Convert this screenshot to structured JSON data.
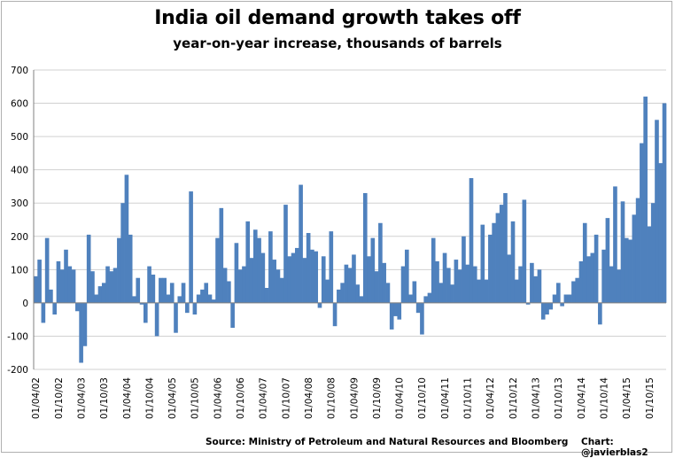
{
  "chart_data": {
    "type": "bar",
    "title": "India oil demand growth takes off",
    "subtitle": "year-on-year increase, thousands of barrels",
    "xlabel": "",
    "ylabel": "",
    "ylim": [
      -200,
      700
    ],
    "yticks": [
      -200,
      -100,
      0,
      100,
      200,
      300,
      400,
      500,
      600,
      700
    ],
    "grid": "horizontal",
    "bar_color": "#4f81bd",
    "source": "Source: Ministry of Petroleum and Natural Resources and Bloomberg",
    "credit": "Chart: @javierblas2",
    "xtick_labels": [
      "01/04/02",
      "01/10/02",
      "01/04/03",
      "01/10/03",
      "01/04/04",
      "01/10/04",
      "01/04/05",
      "01/10/05",
      "01/04/06",
      "01/10/06",
      "01/04/07",
      "01/10/07",
      "01/04/08",
      "01/10/08",
      "01/04/09",
      "01/10/09",
      "01/04/10",
      "01/10/10",
      "01/04/11",
      "01/10/11",
      "01/04/12",
      "01/10/12",
      "01/04/13",
      "01/10/13",
      "01/04/14",
      "01/10/14",
      "01/04/15",
      "01/10/15"
    ],
    "months_per_label": 6,
    "start_month": "2002-04",
    "values": [
      80,
      130,
      -60,
      195,
      40,
      -35,
      125,
      100,
      160,
      110,
      100,
      -25,
      -180,
      -130,
      205,
      95,
      25,
      50,
      60,
      110,
      95,
      105,
      195,
      300,
      385,
      205,
      20,
      75,
      -5,
      -60,
      110,
      85,
      -100,
      75,
      75,
      25,
      60,
      -90,
      20,
      60,
      -30,
      335,
      -35,
      25,
      40,
      60,
      25,
      10,
      195,
      285,
      105,
      65,
      -75,
      180,
      100,
      110,
      245,
      135,
      220,
      195,
      150,
      45,
      215,
      130,
      100,
      75,
      295,
      140,
      150,
      165,
      355,
      135,
      210,
      160,
      155,
      -15,
      140,
      70,
      215,
      -70,
      40,
      60,
      115,
      105,
      145,
      55,
      20,
      330,
      140,
      195,
      95,
      240,
      120,
      60,
      -80,
      -40,
      -50,
      110,
      160,
      25,
      65,
      -30,
      -95,
      20,
      30,
      195,
      125,
      60,
      150,
      105,
      55,
      130,
      100,
      200,
      115,
      375,
      110,
      70,
      235,
      70,
      205,
      240,
      270,
      295,
      330,
      145,
      245,
      70,
      110,
      310,
      -5,
      120,
      80,
      100,
      -50,
      -35,
      -20,
      25,
      60,
      -10,
      25,
      25,
      65,
      75,
      125,
      240,
      140,
      150,
      205,
      -65,
      160,
      255,
      110,
      350,
      100,
      305,
      195,
      190,
      265,
      315,
      480,
      620,
      230,
      300,
      550,
      420,
      600
    ]
  }
}
